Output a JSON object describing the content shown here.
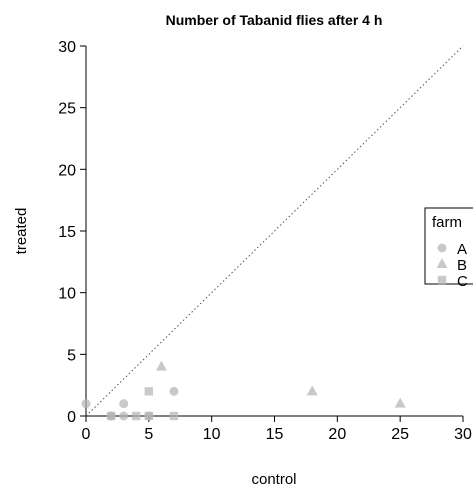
{
  "chart_data": {
    "type": "scatter",
    "title": "Number of Tabanid flies after 4 h",
    "xlabel": "control",
    "ylabel": "treated",
    "xlim": [
      0,
      30
    ],
    "ylim": [
      0,
      30
    ],
    "xticks": [
      0,
      5,
      10,
      15,
      20,
      25,
      30
    ],
    "yticks": [
      0,
      5,
      10,
      15,
      20,
      25,
      30
    ],
    "grid": false,
    "reference_line": "y = x (dotted)",
    "legend": {
      "title": "farm",
      "placement": "right",
      "entries": [
        {
          "label": "A",
          "marker": "circle"
        },
        {
          "label": "B",
          "marker": "triangle"
        },
        {
          "label": "C",
          "marker": "square"
        }
      ]
    },
    "marker_color": "#b4b4b4",
    "series": [
      {
        "name": "A",
        "marker": "circle",
        "points": [
          [
            0,
            1
          ],
          [
            2,
            0
          ],
          [
            3,
            0
          ],
          [
            3,
            1
          ],
          [
            5,
            0
          ],
          [
            7,
            2
          ]
        ]
      },
      {
        "name": "B",
        "marker": "triangle",
        "points": [
          [
            6,
            4
          ],
          [
            18,
            2
          ],
          [
            25,
            1
          ]
        ]
      },
      {
        "name": "C",
        "marker": "square",
        "points": [
          [
            2,
            0
          ],
          [
            4,
            0
          ],
          [
            5,
            2
          ],
          [
            5,
            0
          ],
          [
            7,
            0
          ]
        ]
      }
    ]
  }
}
